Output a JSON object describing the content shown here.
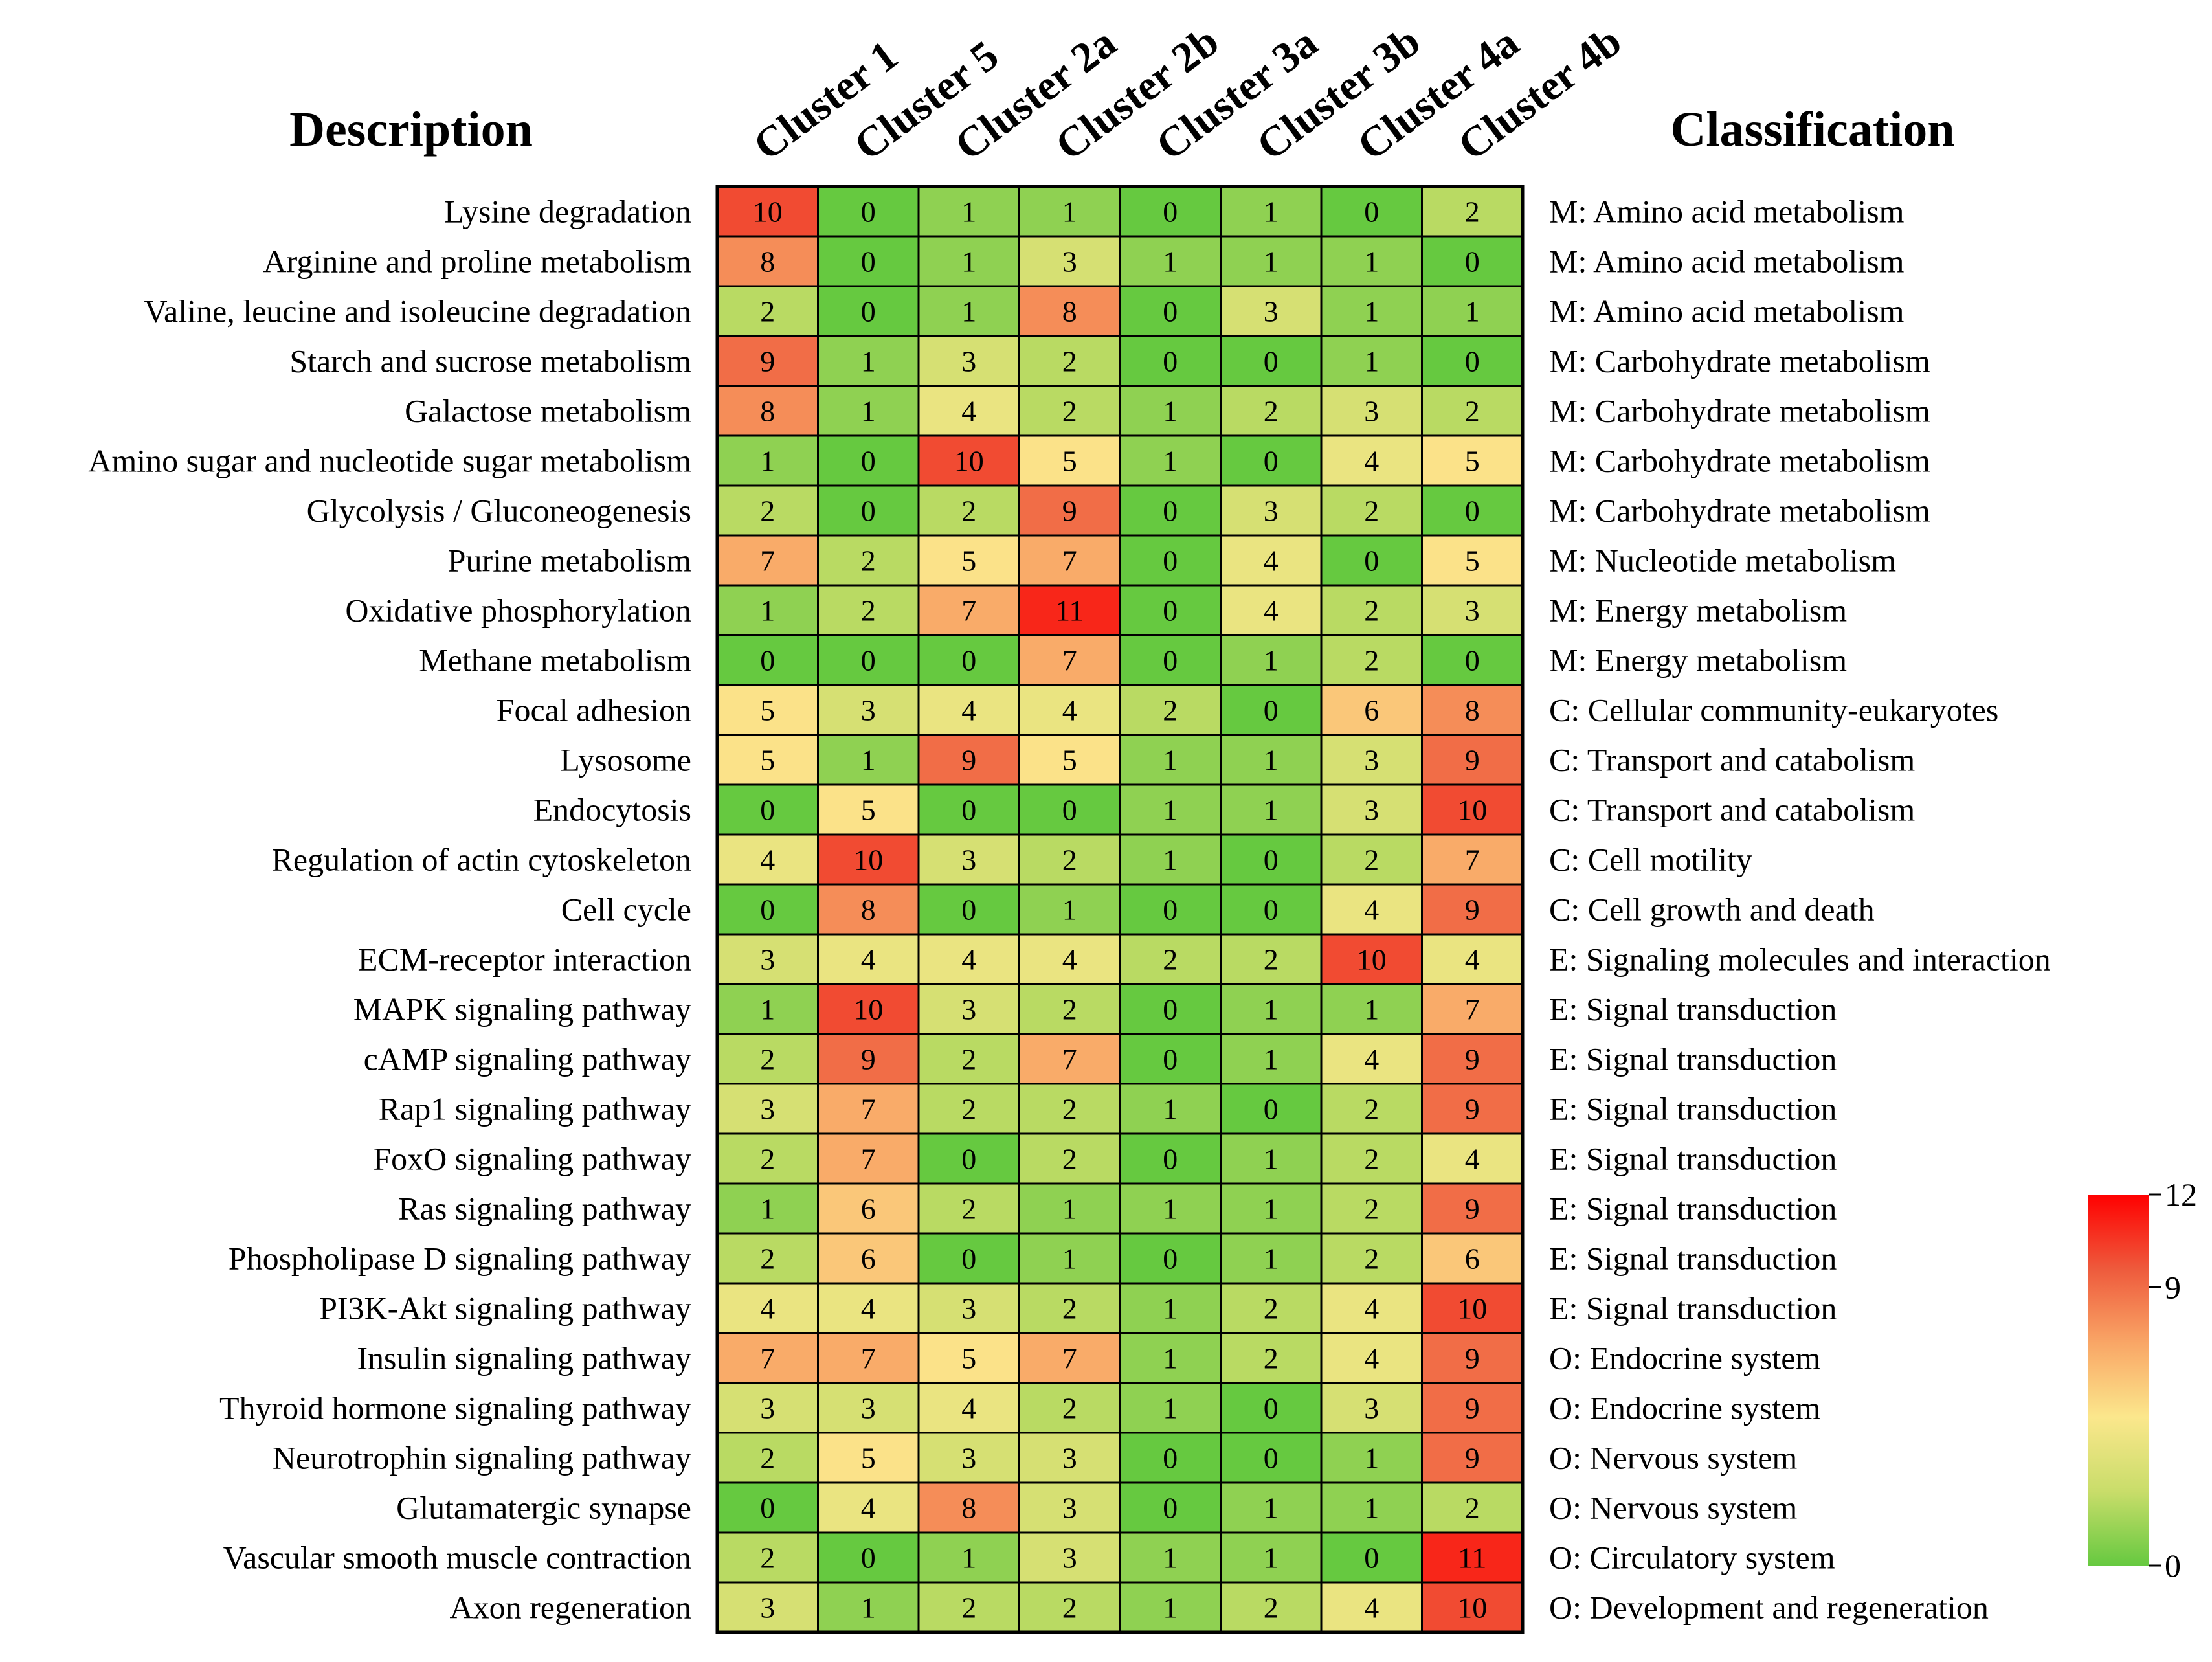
{
  "chart_data": {
    "type": "heatmap",
    "headers": {
      "left": "Description",
      "right": "Classification"
    },
    "columns": [
      "Cluster 1",
      "Cluster 5",
      "Cluster 2a",
      "Cluster 2b",
      "Cluster 3a",
      "Cluster 3b",
      "Cluster 4a",
      "Cluster 4b"
    ],
    "rows": [
      "Lysine degradation",
      "Arginine and proline metabolism",
      "Valine, leucine and isoleucine degradation",
      "Starch and sucrose metabolism",
      "Galactose metabolism",
      "Amino sugar and nucleotide sugar metabolism",
      "Glycolysis / Gluconeogenesis",
      "Purine metabolism",
      "Oxidative phosphorylation",
      "Methane metabolism",
      "Focal adhesion",
      "Lysosome",
      "Endocytosis",
      "Regulation of actin cytoskeleton",
      "Cell cycle",
      "ECM-receptor interaction",
      "MAPK signaling pathway",
      "cAMP signaling pathway",
      "Rap1 signaling pathway",
      "FoxO signaling pathway",
      "Ras signaling pathway",
      "Phospholipase D signaling pathway",
      "PI3K-Akt signaling pathway",
      "Insulin signaling pathway",
      "Thyroid hormone signaling pathway",
      "Neurotrophin signaling pathway",
      "Glutamatergic synapse",
      "Vascular smooth muscle contraction",
      "Axon regeneration"
    ],
    "classification": [
      "M: Amino acid metabolism",
      "M: Amino acid metabolism",
      "M: Amino acid metabolism",
      "M: Carbohydrate metabolism",
      "M: Carbohydrate metabolism",
      "M: Carbohydrate metabolism",
      "M: Carbohydrate metabolism",
      "M: Nucleotide metabolism",
      "M: Energy metabolism",
      "M: Energy metabolism",
      "C: Cellular community-eukaryotes",
      "C: Transport and catabolism",
      "C: Transport and catabolism",
      "C: Cell motility",
      "C: Cell growth and death",
      "E: Signaling molecules and interaction",
      "E: Signal transduction",
      "E: Signal transduction",
      "E: Signal transduction",
      "E: Signal transduction",
      "E: Signal transduction",
      "E: Signal transduction",
      "E: Signal transduction",
      "O: Endocrine system",
      "O: Endocrine system",
      "O: Nervous system",
      "O: Nervous system",
      "O: Circulatory system",
      "O: Development and regeneration"
    ],
    "values": [
      [
        10,
        0,
        1,
        1,
        0,
        1,
        0,
        2
      ],
      [
        8,
        0,
        1,
        3,
        1,
        1,
        1,
        0
      ],
      [
        2,
        0,
        1,
        8,
        0,
        3,
        1,
        1
      ],
      [
        9,
        1,
        3,
        2,
        0,
        0,
        1,
        0
      ],
      [
        8,
        1,
        4,
        2,
        1,
        2,
        3,
        2
      ],
      [
        1,
        0,
        10,
        5,
        1,
        0,
        4,
        5
      ],
      [
        2,
        0,
        2,
        9,
        0,
        3,
        2,
        0
      ],
      [
        7,
        2,
        5,
        7,
        0,
        4,
        0,
        5
      ],
      [
        1,
        2,
        7,
        11,
        0,
        4,
        2,
        3
      ],
      [
        0,
        0,
        0,
        7,
        0,
        1,
        2,
        0
      ],
      [
        5,
        3,
        4,
        4,
        2,
        0,
        6,
        8
      ],
      [
        5,
        1,
        9,
        5,
        1,
        1,
        3,
        9
      ],
      [
        0,
        5,
        0,
        0,
        1,
        1,
        3,
        10
      ],
      [
        4,
        10,
        3,
        2,
        1,
        0,
        2,
        7
      ],
      [
        0,
        8,
        0,
        1,
        0,
        0,
        4,
        9
      ],
      [
        3,
        4,
        4,
        4,
        2,
        2,
        10,
        4
      ],
      [
        1,
        10,
        3,
        2,
        0,
        1,
        1,
        7
      ],
      [
        2,
        9,
        2,
        7,
        0,
        1,
        4,
        9
      ],
      [
        3,
        7,
        2,
        2,
        1,
        0,
        2,
        9
      ],
      [
        2,
        7,
        0,
        2,
        0,
        1,
        2,
        4
      ],
      [
        1,
        6,
        2,
        1,
        1,
        1,
        2,
        9
      ],
      [
        2,
        6,
        0,
        1,
        0,
        1,
        2,
        6
      ],
      [
        4,
        4,
        3,
        2,
        1,
        2,
        4,
        10
      ],
      [
        7,
        7,
        5,
        7,
        1,
        2,
        4,
        9
      ],
      [
        3,
        3,
        4,
        2,
        1,
        0,
        3,
        9
      ],
      [
        2,
        5,
        3,
        3,
        0,
        0,
        1,
        9
      ],
      [
        0,
        4,
        8,
        3,
        0,
        1,
        1,
        2
      ],
      [
        2,
        0,
        1,
        3,
        1,
        1,
        0,
        11
      ],
      [
        3,
        1,
        2,
        2,
        1,
        2,
        4,
        10
      ]
    ],
    "colorscale": {
      "min": 0,
      "max": 12,
      "ticks": [
        0,
        9,
        12
      ],
      "stops": [
        "#66c940",
        "#c9dd6a",
        "#fbe78c",
        "#f9a666",
        "#ee5a3c",
        "#ff0000"
      ]
    }
  }
}
